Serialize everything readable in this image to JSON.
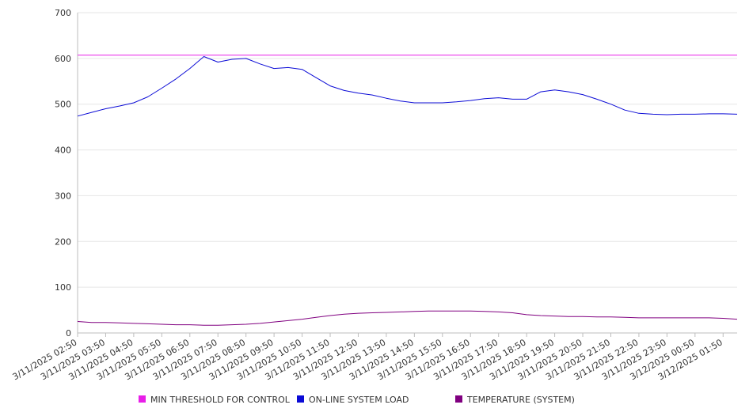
{
  "colors": {
    "threshold": "#e81ee8",
    "load": "#0b0bd6",
    "temperature": "#800080",
    "grid": "#e6e6e6",
    "axis": "#bdbdbd"
  },
  "legend": [
    {
      "label": "MIN THRESHOLD FOR CONTROL",
      "color": "#e81ee8"
    },
    {
      "label": "ON-LINE SYSTEM LOAD",
      "color": "#0b0bd6"
    },
    {
      "label": "TEMPERATURE (SYSTEM)",
      "color": "#800080"
    }
  ],
  "chart_data": {
    "type": "line",
    "ylim": [
      0,
      700
    ],
    "yticks": [
      0,
      100,
      200,
      300,
      400,
      500,
      600,
      700
    ],
    "x_tick_labels": [
      "3/11/2025 02:50",
      "3/11/2025 03:50",
      "3/11/2025 04:50",
      "3/11/2025 05:50",
      "3/11/2025 06:50",
      "3/11/2025 07:50",
      "3/11/2025 08:50",
      "3/11/2025 09:50",
      "3/11/2025 10:50",
      "3/11/2025 11:50",
      "3/11/2025 12:50",
      "3/11/2025 13:50",
      "3/11/2025 14:50",
      "3/11/2025 15:50",
      "3/11/2025 16:50",
      "3/11/2025 17:50",
      "3/11/2025 18:50",
      "3/11/2025 19:50",
      "3/11/2025 20:50",
      "3/11/2025 21:50",
      "3/11/2025 22:50",
      "3/11/2025 23:50",
      "3/12/2025 00:50",
      "3/12/2025 01:50"
    ],
    "x": [
      "3/11/2025 02:50",
      "3/11/2025 03:20",
      "3/11/2025 03:50",
      "3/11/2025 04:20",
      "3/11/2025 04:50",
      "3/11/2025 05:20",
      "3/11/2025 05:50",
      "3/11/2025 06:20",
      "3/11/2025 06:50",
      "3/11/2025 07:20",
      "3/11/2025 07:50",
      "3/11/2025 08:20",
      "3/11/2025 08:50",
      "3/11/2025 09:20",
      "3/11/2025 09:50",
      "3/11/2025 10:20",
      "3/11/2025 10:50",
      "3/11/2025 11:20",
      "3/11/2025 11:50",
      "3/11/2025 12:20",
      "3/11/2025 12:50",
      "3/11/2025 13:20",
      "3/11/2025 13:50",
      "3/11/2025 14:20",
      "3/11/2025 14:50",
      "3/11/2025 15:20",
      "3/11/2025 15:50",
      "3/11/2025 16:20",
      "3/11/2025 16:50",
      "3/11/2025 17:20",
      "3/11/2025 17:50",
      "3/11/2025 18:20",
      "3/11/2025 18:50",
      "3/11/2025 19:20",
      "3/11/2025 19:50",
      "3/11/2025 20:20",
      "3/11/2025 20:50",
      "3/11/2025 21:20",
      "3/11/2025 21:50",
      "3/11/2025 22:20",
      "3/11/2025 22:50",
      "3/11/2025 23:20",
      "3/11/2025 23:50",
      "3/12/2025 00:20",
      "3/12/2025 00:50",
      "3/12/2025 01:20",
      "3/12/2025 01:50",
      "3/12/2025 02:20"
    ],
    "series": [
      {
        "name": "MIN THRESHOLD FOR CONTROL",
        "values": [
          607,
          607,
          607,
          607,
          607,
          607,
          607,
          607,
          607,
          607,
          607,
          607,
          607,
          607,
          607,
          607,
          607,
          607,
          607,
          607,
          607,
          607,
          607,
          607,
          607,
          607,
          607,
          607,
          607,
          607,
          607,
          607,
          607,
          607,
          607,
          607,
          607,
          607,
          607,
          607,
          607,
          607,
          607,
          607,
          607,
          607,
          607,
          607
        ]
      },
      {
        "name": "ON-LINE SYSTEM LOAD",
        "values": [
          474,
          482,
          490,
          496,
          503,
          516,
          535,
          555,
          578,
          604,
          592,
          598,
          600,
          588,
          578,
          580,
          576,
          558,
          540,
          530,
          524,
          520,
          513,
          507,
          503,
          503,
          503,
          505,
          508,
          512,
          514,
          511,
          511,
          527,
          531,
          527,
          521,
          511,
          500,
          487,
          480,
          478,
          477,
          478,
          478,
          479,
          479,
          478
        ]
      },
      {
        "name": "TEMPERATURE (SYSTEM)",
        "values": [
          25,
          23,
          23,
          22,
          21,
          20,
          19,
          18,
          18,
          17,
          17,
          18,
          19,
          21,
          24,
          27,
          30,
          34,
          38,
          41,
          43,
          44,
          45,
          46,
          47,
          48,
          48,
          48,
          48,
          47,
          46,
          44,
          40,
          38,
          37,
          36,
          36,
          35,
          35,
          34,
          33,
          33,
          33,
          33,
          33,
          33,
          32,
          30
        ]
      }
    ]
  }
}
